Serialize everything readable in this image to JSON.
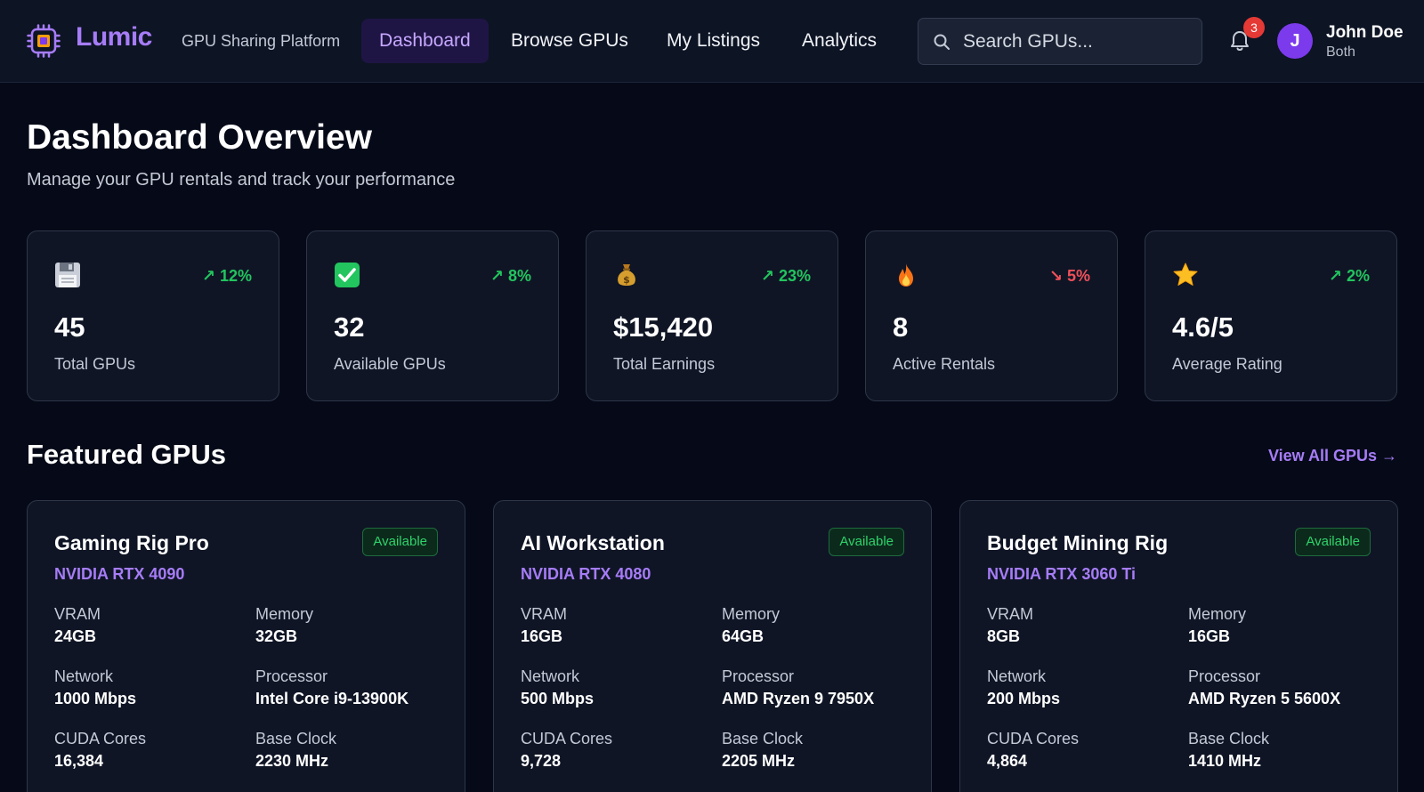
{
  "header": {
    "brand": "Lumic",
    "tagline": "GPU Sharing Platform",
    "nav": [
      {
        "label": "Dashboard",
        "active": true
      },
      {
        "label": "Browse GPUs",
        "active": false
      },
      {
        "label": "My Listings",
        "active": false
      },
      {
        "label": "Analytics",
        "active": false
      }
    ],
    "search_placeholder": "Search GPUs...",
    "notification_count": "3",
    "user": {
      "initial": "J",
      "name": "John Doe",
      "role": "Both"
    }
  },
  "page": {
    "title": "Dashboard Overview",
    "subtitle": "Manage your GPU rentals and track your performance"
  },
  "stats": [
    {
      "icon": "floppy-disk-icon",
      "change": "↗ 12%",
      "trend": "up",
      "value": "45",
      "label": "Total GPUs"
    },
    {
      "icon": "check-mark-icon",
      "change": "↗ 8%",
      "trend": "up",
      "value": "32",
      "label": "Available GPUs"
    },
    {
      "icon": "money-bag-icon",
      "change": "↗ 23%",
      "trend": "up",
      "value": "$15,420",
      "label": "Total Earnings"
    },
    {
      "icon": "fire-icon",
      "change": "↘ 5%",
      "trend": "down",
      "value": "8",
      "label": "Active Rentals"
    },
    {
      "icon": "star-icon",
      "change": "↗ 2%",
      "trend": "up",
      "value": "4.6/5",
      "label": "Average Rating"
    }
  ],
  "featured": {
    "title": "Featured GPUs",
    "view_all": "View All GPUs →",
    "gpus": [
      {
        "name": "Gaming Rig Pro",
        "model": "NVIDIA RTX 4090",
        "status": "Available",
        "specs": [
          {
            "label": "VRAM",
            "value": "24GB"
          },
          {
            "label": "Memory",
            "value": "32GB"
          },
          {
            "label": "Network",
            "value": "1000 Mbps"
          },
          {
            "label": "Processor",
            "value": "Intel Core i9-13900K"
          },
          {
            "label": "CUDA Cores",
            "value": "16,384"
          },
          {
            "label": "Base Clock",
            "value": "2230 MHz"
          }
        ]
      },
      {
        "name": "AI Workstation",
        "model": "NVIDIA RTX 4080",
        "status": "Available",
        "specs": [
          {
            "label": "VRAM",
            "value": "16GB"
          },
          {
            "label": "Memory",
            "value": "64GB"
          },
          {
            "label": "Network",
            "value": "500 Mbps"
          },
          {
            "label": "Processor",
            "value": "AMD Ryzen 9 7950X"
          },
          {
            "label": "CUDA Cores",
            "value": "9,728"
          },
          {
            "label": "Base Clock",
            "value": "2205 MHz"
          }
        ]
      },
      {
        "name": "Budget Mining Rig",
        "model": "NVIDIA RTX 3060 Ti",
        "status": "Available",
        "specs": [
          {
            "label": "VRAM",
            "value": "8GB"
          },
          {
            "label": "Memory",
            "value": "16GB"
          },
          {
            "label": "Network",
            "value": "200 Mbps"
          },
          {
            "label": "Processor",
            "value": "AMD Ryzen 5 5600X"
          },
          {
            "label": "CUDA Cores",
            "value": "4,864"
          },
          {
            "label": "Base Clock",
            "value": "1410 MHz"
          }
        ]
      }
    ]
  },
  "colors": {
    "accent": "#a67cf7",
    "background": "#060a18",
    "card": "#0f1525",
    "positive": "#22c55e",
    "negative": "#f0505a"
  }
}
